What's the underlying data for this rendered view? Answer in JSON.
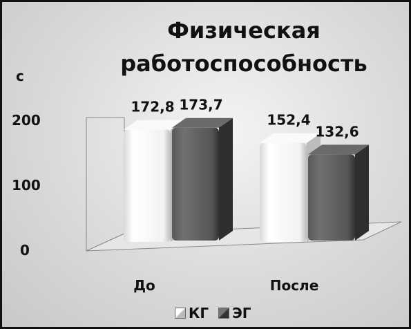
{
  "chart_data": {
    "type": "bar",
    "title_lines": [
      "Физическая",
      "работоспособность"
    ],
    "ylabel": "с",
    "yticks": [
      "0",
      "100",
      "200"
    ],
    "ylim": [
      0,
      200
    ],
    "categories": [
      "До",
      "После"
    ],
    "series": [
      {
        "name": "КГ",
        "values": [
          172.8,
          152.4
        ],
        "labels": [
          "172,8",
          "152,4"
        ],
        "color": "#ffffff"
      },
      {
        "name": "ЭГ",
        "values": [
          173.7,
          132.6
        ],
        "labels": [
          "173,7",
          "132,6"
        ],
        "color": "#4a4a4a"
      }
    ],
    "legend_position": "bottom"
  }
}
